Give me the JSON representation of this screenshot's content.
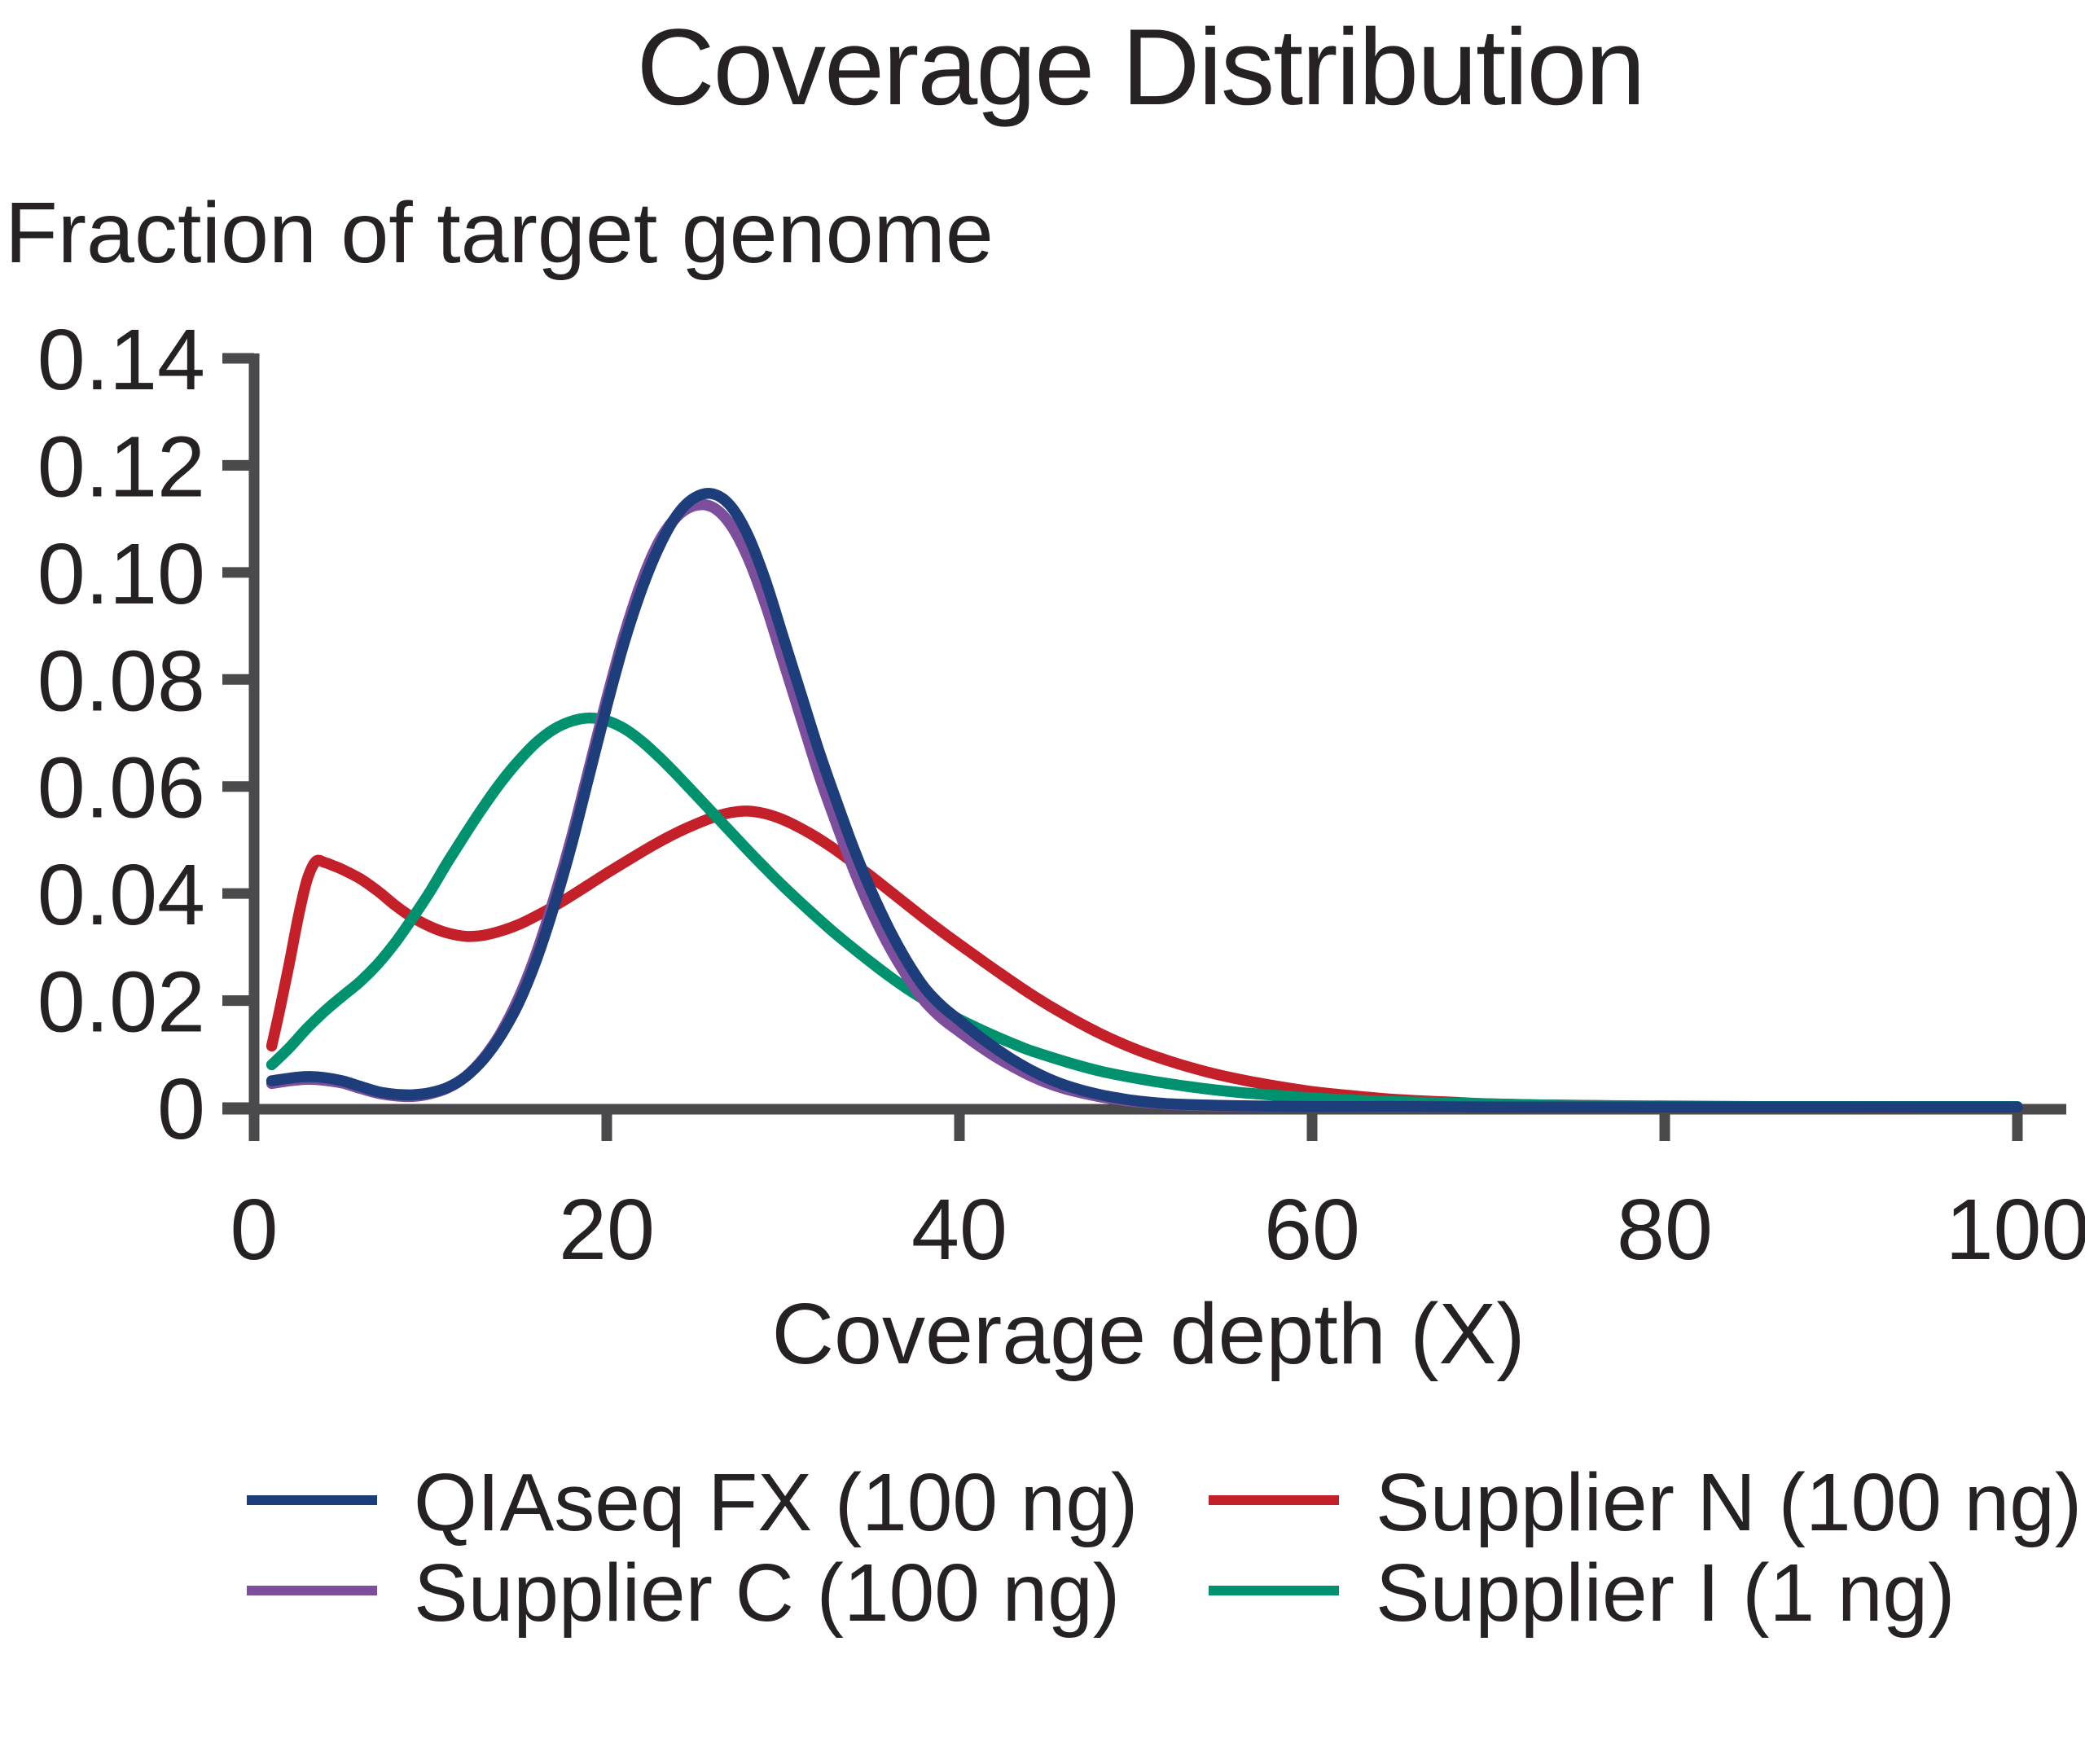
{
  "figure": {
    "background": "#ffffff",
    "text_color": "#262223"
  },
  "chart_data": {
    "type": "line",
    "title": "Coverage Distribution",
    "y_axis_title": "Fraction of target genome",
    "xlabel": "Coverage depth (X)",
    "ylabel": "Fraction of target genome",
    "xlim": [
      0,
      100
    ],
    "ylim": [
      0,
      0.14
    ],
    "grid": false,
    "axis_color": "#4a4a4c",
    "legend_position": "bottom",
    "xticks": {
      "values": [
        0,
        20,
        40,
        60,
        80,
        100
      ],
      "labels": [
        "0",
        "20",
        "40",
        "60",
        "80",
        "100"
      ]
    },
    "yticks": {
      "values": [
        0,
        0.02,
        0.04,
        0.06,
        0.08,
        0.1,
        0.12,
        0.14
      ],
      "labels": [
        "0",
        "0.02",
        "0.04",
        "0.06",
        "0.08",
        "0.10",
        "0.12",
        "0.14"
      ]
    },
    "series": [
      {
        "name": "Supplier N (100 ng)",
        "color": "#c32029",
        "points": [
          [
            1,
            0.0115
          ],
          [
            1.5,
            0.019
          ],
          [
            2,
            0.027
          ],
          [
            2.5,
            0.0355
          ],
          [
            3,
            0.0425
          ],
          [
            3.5,
            0.046
          ],
          [
            4,
            0.0458
          ],
          [
            4.5,
            0.0452
          ],
          [
            5,
            0.0445
          ],
          [
            6,
            0.0428
          ],
          [
            7,
            0.0405
          ],
          [
            8,
            0.0378
          ],
          [
            9,
            0.0355
          ],
          [
            10,
            0.0338
          ],
          [
            11,
            0.0326
          ],
          [
            12,
            0.032
          ],
          [
            13,
            0.0322
          ],
          [
            14,
            0.033
          ],
          [
            15,
            0.0342
          ],
          [
            16,
            0.0358
          ],
          [
            17,
            0.0376
          ],
          [
            18,
            0.0396
          ],
          [
            19,
            0.0417
          ],
          [
            20,
            0.0438
          ],
          [
            21,
            0.0458
          ],
          [
            22,
            0.0478
          ],
          [
            23,
            0.0497
          ],
          [
            24,
            0.0514
          ],
          [
            25,
            0.0529
          ],
          [
            26,
            0.0542
          ],
          [
            27,
            0.0551
          ],
          [
            28,
            0.0554
          ],
          [
            29,
            0.0549
          ],
          [
            30,
            0.0538
          ],
          [
            31,
            0.0522
          ],
          [
            32,
            0.0503
          ],
          [
            33,
            0.0481
          ],
          [
            34,
            0.0457
          ],
          [
            35,
            0.0432
          ],
          [
            36,
            0.0406
          ],
          [
            37,
            0.038
          ],
          [
            38,
            0.0354
          ],
          [
            39,
            0.0329
          ],
          [
            40,
            0.0305
          ],
          [
            42,
            0.0258
          ],
          [
            44,
            0.0213
          ],
          [
            46,
            0.0173
          ],
          [
            48,
            0.0138
          ],
          [
            50,
            0.0109
          ],
          [
            52,
            0.0086
          ],
          [
            54,
            0.0067
          ],
          [
            56,
            0.0052
          ],
          [
            58,
            0.004
          ],
          [
            60,
            0.003
          ],
          [
            62,
            0.0023
          ],
          [
            64,
            0.0017
          ],
          [
            66,
            0.0013
          ],
          [
            68,
            0.001
          ],
          [
            70,
            0.0007
          ],
          [
            73,
            0.0005
          ],
          [
            76,
            0.0004
          ],
          [
            80,
            0.0002
          ],
          [
            85,
            0.0002
          ],
          [
            90,
            0.0001
          ],
          [
            95,
            0.0001
          ],
          [
            100,
            0.0001
          ]
        ]
      },
      {
        "name": "Supplier I (1 ng)",
        "color": "#00916f",
        "points": [
          [
            1,
            0.008
          ],
          [
            2,
            0.0112
          ],
          [
            3,
            0.0148
          ],
          [
            4,
            0.018
          ],
          [
            5,
            0.0208
          ],
          [
            6,
            0.0235
          ],
          [
            7,
            0.0268
          ],
          [
            8,
            0.0308
          ],
          [
            9,
            0.0355
          ],
          [
            10,
            0.0405
          ],
          [
            11,
            0.046
          ],
          [
            12,
            0.0512
          ],
          [
            13,
            0.0562
          ],
          [
            14,
            0.0608
          ],
          [
            15,
            0.0648
          ],
          [
            16,
            0.0682
          ],
          [
            17,
            0.0707
          ],
          [
            18,
            0.0722
          ],
          [
            19,
            0.0728
          ],
          [
            20,
            0.0723
          ],
          [
            21,
            0.0708
          ],
          [
            22,
            0.0684
          ],
          [
            23,
            0.0654
          ],
          [
            24,
            0.0621
          ],
          [
            25,
            0.0586
          ],
          [
            26,
            0.0551
          ],
          [
            27,
            0.0516
          ],
          [
            28,
            0.0481
          ],
          [
            29,
            0.0447
          ],
          [
            30,
            0.0414
          ],
          [
            31,
            0.0383
          ],
          [
            32,
            0.0353
          ],
          [
            33,
            0.0324
          ],
          [
            34,
            0.0297
          ],
          [
            35,
            0.0271
          ],
          [
            36,
            0.0246
          ],
          [
            37,
            0.0223
          ],
          [
            38,
            0.0202
          ],
          [
            39,
            0.0183
          ],
          [
            40,
            0.0165
          ],
          [
            41,
            0.0149
          ],
          [
            42,
            0.0134
          ],
          [
            43,
            0.012
          ],
          [
            44,
            0.0107
          ],
          [
            46,
            0.0086
          ],
          [
            48,
            0.0068
          ],
          [
            50,
            0.0055
          ],
          [
            52,
            0.0044
          ],
          [
            54,
            0.0035
          ],
          [
            56,
            0.0028
          ],
          [
            58,
            0.0023
          ],
          [
            60,
            0.0018
          ],
          [
            63,
            0.0013
          ],
          [
            66,
            0.001
          ],
          [
            70,
            0.0007
          ],
          [
            75,
            0.0004
          ],
          [
            80,
            0.0003
          ],
          [
            85,
            0.0002
          ],
          [
            90,
            0.0002
          ],
          [
            100,
            0.0002
          ]
        ]
      },
      {
        "name": "Supplier C (100 ng)",
        "color": "#7c4e9b",
        "points": [
          [
            1,
            0.0045
          ],
          [
            2,
            0.005
          ],
          [
            3,
            0.0053
          ],
          [
            4,
            0.0051
          ],
          [
            5,
            0.0046
          ],
          [
            6,
            0.0036
          ],
          [
            7,
            0.0027
          ],
          [
            8,
            0.0022
          ],
          [
            9,
            0.0021
          ],
          [
            10,
            0.0026
          ],
          [
            11,
            0.0037
          ],
          [
            12,
            0.0058
          ],
          [
            13,
            0.0092
          ],
          [
            14,
            0.014
          ],
          [
            15,
            0.0205
          ],
          [
            16,
            0.0288
          ],
          [
            17,
            0.039
          ],
          [
            18,
            0.0505
          ],
          [
            19,
            0.0635
          ],
          [
            20,
            0.0765
          ],
          [
            21,
            0.0885
          ],
          [
            22,
            0.0985
          ],
          [
            23,
            0.106
          ],
          [
            24,
            0.1105
          ],
          [
            25,
            0.1125
          ],
          [
            26,
            0.1122
          ],
          [
            27,
            0.109
          ],
          [
            28,
            0.1028
          ],
          [
            29,
            0.094
          ],
          [
            30,
            0.0835
          ],
          [
            31,
            0.073
          ],
          [
            32,
            0.0625
          ],
          [
            33,
            0.0532
          ],
          [
            34,
            0.0445
          ],
          [
            35,
            0.0368
          ],
          [
            36,
            0.0302
          ],
          [
            37,
            0.0247
          ],
          [
            38,
            0.02
          ],
          [
            39,
            0.0167
          ],
          [
            40,
            0.0142
          ],
          [
            41,
            0.0118
          ],
          [
            42,
            0.0096
          ],
          [
            43,
            0.0077
          ],
          [
            44,
            0.006
          ],
          [
            45,
            0.0046
          ],
          [
            46,
            0.0035
          ],
          [
            47,
            0.0027
          ],
          [
            48,
            0.002
          ],
          [
            49,
            0.0015
          ],
          [
            50,
            0.0011
          ],
          [
            52,
            0.0006
          ],
          [
            55,
            0.0003
          ],
          [
            60,
            0.0002
          ],
          [
            65,
            0.0001
          ],
          [
            70,
            0.0001
          ],
          [
            80,
            0.0001
          ],
          [
            90,
            0.0001
          ],
          [
            100,
            0.0001
          ]
        ]
      },
      {
        "name": "QIAseq FX (100 ng)",
        "color": "#1e3d7b",
        "points": [
          [
            1,
            0.005
          ],
          [
            2,
            0.0055
          ],
          [
            3,
            0.0058
          ],
          [
            4,
            0.0056
          ],
          [
            5,
            0.005
          ],
          [
            6,
            0.004
          ],
          [
            7,
            0.003
          ],
          [
            8,
            0.0025
          ],
          [
            9,
            0.0024
          ],
          [
            10,
            0.0028
          ],
          [
            11,
            0.0038
          ],
          [
            12,
            0.0058
          ],
          [
            13,
            0.009
          ],
          [
            14,
            0.0135
          ],
          [
            15,
            0.0195
          ],
          [
            16,
            0.0275
          ],
          [
            17,
            0.0375
          ],
          [
            18,
            0.049
          ],
          [
            19,
            0.062
          ],
          [
            20,
            0.075
          ],
          [
            21,
            0.087
          ],
          [
            22,
            0.097
          ],
          [
            23,
            0.105
          ],
          [
            24,
            0.1108
          ],
          [
            25,
            0.114
          ],
          [
            26,
            0.1147
          ],
          [
            27,
            0.1125
          ],
          [
            28,
            0.107
          ],
          [
            29,
            0.0985
          ],
          [
            30,
            0.088
          ],
          [
            31,
            0.0775
          ],
          [
            32,
            0.067
          ],
          [
            33,
            0.0575
          ],
          [
            34,
            0.0485
          ],
          [
            35,
            0.0405
          ],
          [
            36,
            0.0335
          ],
          [
            37,
            0.0275
          ],
          [
            38,
            0.0225
          ],
          [
            39,
            0.019
          ],
          [
            40,
            0.0163
          ],
          [
            41,
            0.0136
          ],
          [
            42,
            0.0112
          ],
          [
            43,
            0.009
          ],
          [
            44,
            0.0071
          ],
          [
            45,
            0.0055
          ],
          [
            46,
            0.0042
          ],
          [
            47,
            0.0032
          ],
          [
            48,
            0.0024
          ],
          [
            49,
            0.0018
          ],
          [
            50,
            0.0013
          ],
          [
            52,
            0.0007
          ],
          [
            55,
            0.0004
          ],
          [
            60,
            0.0002
          ],
          [
            65,
            0.0002
          ],
          [
            70,
            0.0001
          ],
          [
            80,
            0.0001
          ],
          [
            90,
            0.0001
          ],
          [
            100,
            0.0001
          ]
        ]
      }
    ],
    "legend": {
      "entries": [
        {
          "label": "QIAseq FX (100 ng)",
          "color": "#1e3d7b"
        },
        {
          "label": "Supplier N (100 ng)",
          "color": "#c32029"
        },
        {
          "label": "Supplier C (100 ng)",
          "color": "#7c4e9b"
        },
        {
          "label": "Supplier I (1 ng)",
          "color": "#00916f"
        }
      ]
    }
  }
}
